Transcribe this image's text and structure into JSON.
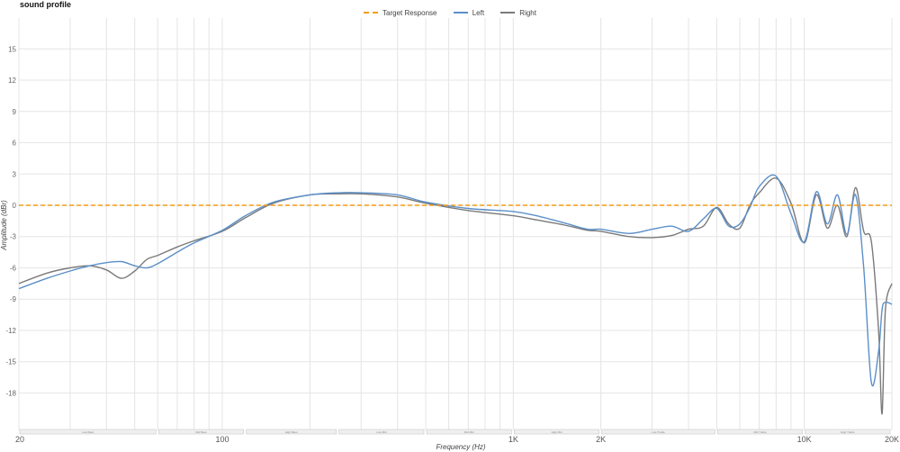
{
  "title": "sound profile",
  "legend": [
    {
      "label": "Target Response",
      "color": "#f39c12",
      "style": "dashed"
    },
    {
      "label": "Left",
      "color": "#5b8fc9",
      "style": "solid"
    },
    {
      "label": "Right",
      "color": "#7a7a7a",
      "style": "solid"
    }
  ],
  "chart_data": {
    "type": "line",
    "title": "sound profile",
    "xlabel": "Frequency (Hz)",
    "ylabel": "Amplitude (dBr)",
    "xscale": "log",
    "xlim": [
      20,
      20000
    ],
    "ylim": [
      -21,
      18
    ],
    "grid": true,
    "legend_position": "top",
    "x_tick_labels": [
      "20",
      "100",
      "1K",
      "2K",
      "10K",
      "20K"
    ],
    "y_ticks": [
      15,
      12,
      9,
      6,
      3,
      0,
      -3,
      -6,
      -9,
      -12,
      -15,
      -18
    ],
    "bands": [
      "Low Bass",
      "Mid Bass",
      "High Bass",
      "Low Mid",
      "Mid Mid",
      "High Mid",
      "Low Treble",
      "Mid Treble",
      "High Treble"
    ],
    "band_ranges_hz": [
      [
        20,
        60
      ],
      [
        60,
        120
      ],
      [
        120,
        250
      ],
      [
        250,
        500
      ],
      [
        500,
        1000
      ],
      [
        1000,
        2000
      ],
      [
        2000,
        5000
      ],
      [
        5000,
        10000
      ],
      [
        10000,
        20000
      ]
    ],
    "x": [
      20,
      25,
      30,
      35,
      40,
      45,
      50,
      55,
      60,
      70,
      80,
      100,
      120,
      150,
      200,
      250,
      300,
      400,
      500,
      700,
      1000,
      1200,
      1500,
      1800,
      2000,
      2500,
      3000,
      3500,
      4000,
      4500,
      5000,
      5500,
      6000,
      6500,
      7000,
      8000,
      9000,
      10000,
      11000,
      12000,
      13000,
      14000,
      15000,
      16000,
      17000,
      18000,
      18500,
      19000,
      20000
    ],
    "series": [
      {
        "name": "Target Response",
        "values": [
          0,
          0,
          0,
          0,
          0,
          0,
          0,
          0,
          0,
          0,
          0,
          0,
          0,
          0,
          0,
          0,
          0,
          0,
          0,
          0,
          0,
          0,
          0,
          0,
          0,
          0,
          0,
          0,
          0,
          0,
          0,
          0,
          0,
          0,
          0,
          0,
          0,
          0,
          0,
          0,
          0,
          0,
          0,
          0,
          0,
          0,
          0,
          0,
          0
        ]
      },
      {
        "name": "Left",
        "values": [
          -8.0,
          -7.0,
          -6.3,
          -5.8,
          -5.5,
          -5.4,
          -5.8,
          -6.0,
          -5.6,
          -4.5,
          -3.6,
          -2.4,
          -1.0,
          0.3,
          1.0,
          1.2,
          1.2,
          1.0,
          0.3,
          -0.3,
          -0.6,
          -1.0,
          -1.7,
          -2.3,
          -2.3,
          -2.7,
          -2.3,
          -2.0,
          -2.5,
          -1.3,
          -0.3,
          -2.0,
          -1.8,
          -0.2,
          1.8,
          2.8,
          -0.8,
          -3.5,
          1.3,
          -1.8,
          1.0,
          -2.8,
          1.0,
          -6.0,
          -17.0,
          -14.0,
          -10.0,
          -9.3,
          -9.5
        ]
      },
      {
        "name": "Right",
        "values": [
          -7.5,
          -6.5,
          -6.0,
          -5.8,
          -6.2,
          -7.0,
          -6.3,
          -5.2,
          -4.8,
          -4.0,
          -3.4,
          -2.5,
          -1.2,
          0.2,
          1.0,
          1.1,
          1.1,
          0.8,
          0.2,
          -0.5,
          -1.0,
          -1.4,
          -1.9,
          -2.4,
          -2.5,
          -3.0,
          -3.1,
          -2.9,
          -2.3,
          -2.0,
          -0.2,
          -1.8,
          -2.2,
          0.0,
          1.2,
          2.6,
          0.2,
          -3.6,
          1.0,
          -2.2,
          0.0,
          -3.0,
          1.7,
          -2.5,
          -3.5,
          -12.0,
          -20.0,
          -10.0,
          -7.5
        ]
      }
    ]
  },
  "axes": {
    "xlabel": "Frequency (Hz)",
    "ylabel": "Amplitude (dBr)"
  }
}
